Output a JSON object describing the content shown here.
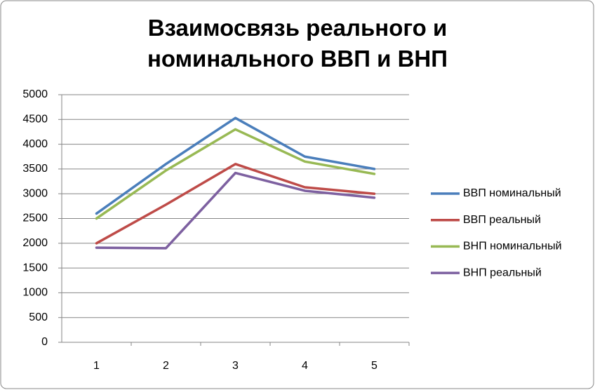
{
  "chart_data": {
    "type": "line",
    "title": "Взаимосвязь реального и номинального ВВП и ВНП",
    "categories": [
      "1",
      "2",
      "3",
      "4",
      "5"
    ],
    "series": [
      {
        "name": "ВВП номинальный",
        "color": "#4a7ebb",
        "values": [
          2600,
          3600,
          4530,
          3750,
          3500
        ]
      },
      {
        "name": "ВВП реальный",
        "color": "#be4b48",
        "values": [
          2000,
          2780,
          3600,
          3130,
          3000
        ]
      },
      {
        "name": "ВНП номинальный",
        "color": "#98b954",
        "values": [
          2500,
          3470,
          4300,
          3650,
          3400
        ]
      },
      {
        "name": "ВНП реальный",
        "color": "#7d60a0",
        "values": [
          1910,
          1900,
          3420,
          3060,
          2920
        ]
      }
    ],
    "ylim": [
      0,
      5000
    ],
    "yticks": [
      0,
      500,
      1000,
      1500,
      2000,
      2500,
      3000,
      3500,
      4000,
      4500,
      5000
    ],
    "grid": true,
    "legend": "right"
  }
}
